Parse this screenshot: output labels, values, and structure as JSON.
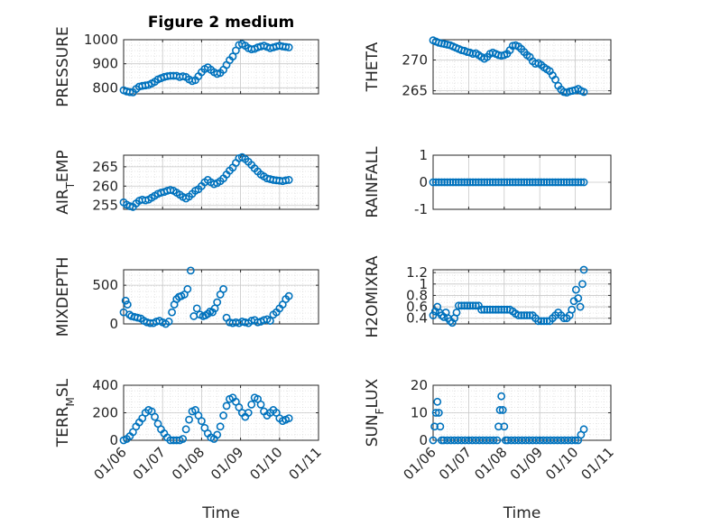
{
  "figure_title": "Figure 2 medium",
  "colors": {
    "marker": "#0072BD",
    "axes": "#262626",
    "grid": "#c8c8c8",
    "minor_grid": "#dcdcdc"
  },
  "chart_data": [
    {
      "type": "scatter",
      "ylabel": "PRESSURE",
      "title": "Figure 2 medium",
      "xlabel": "",
      "xticks": [],
      "xlim": [
        0,
        5
      ],
      "ylim": [
        775,
        1000
      ],
      "yticks": [
        800,
        900,
        1000
      ],
      "grid": true,
      "minor_grid": true,
      "x": [
        0.0,
        0.08,
        0.16,
        0.24,
        0.32,
        0.4,
        0.48,
        0.56,
        0.64,
        0.72,
        0.8,
        0.88,
        0.96,
        1.04,
        1.12,
        1.2,
        1.28,
        1.36,
        1.44,
        1.52,
        1.6,
        1.68,
        1.76,
        1.84,
        1.92,
        2.0,
        2.08,
        2.16,
        2.24,
        2.32,
        2.4,
        2.48,
        2.56,
        2.64,
        2.72,
        2.8,
        2.88,
        2.96,
        3.04,
        3.12,
        3.2,
        3.28,
        3.36,
        3.44,
        3.52,
        3.6,
        3.68,
        3.76,
        3.84,
        3.92,
        4.0,
        4.08,
        4.16,
        4.24
      ],
      "y": [
        790,
        785,
        782,
        781,
        795,
        805,
        808,
        810,
        812,
        818,
        825,
        835,
        840,
        845,
        848,
        850,
        850,
        850,
        845,
        848,
        845,
        835,
        828,
        832,
        848,
        865,
        878,
        885,
        875,
        865,
        858,
        862,
        875,
        895,
        915,
        930,
        955,
        978,
        982,
        975,
        965,
        960,
        962,
        968,
        972,
        975,
        970,
        965,
        968,
        972,
        975,
        972,
        970,
        968
      ]
    },
    {
      "type": "scatter",
      "ylabel": "THETA",
      "xlabel": "",
      "xticks": [],
      "xlim": [
        0,
        5
      ],
      "ylim": [
        264.5,
        273.3
      ],
      "yticks": [
        265,
        270
      ],
      "grid": true,
      "minor_grid": true,
      "x": [
        0.0,
        0.08,
        0.16,
        0.24,
        0.32,
        0.4,
        0.48,
        0.56,
        0.64,
        0.72,
        0.8,
        0.88,
        0.96,
        1.04,
        1.12,
        1.2,
        1.28,
        1.36,
        1.44,
        1.52,
        1.6,
        1.68,
        1.76,
        1.84,
        1.92,
        2.0,
        2.08,
        2.16,
        2.24,
        2.32,
        2.4,
        2.48,
        2.56,
        2.64,
        2.72,
        2.8,
        2.88,
        2.96,
        3.04,
        3.12,
        3.2,
        3.28,
        3.36,
        3.44,
        3.52,
        3.6,
        3.68,
        3.76,
        3.84,
        3.92,
        4.0,
        4.08,
        4.16,
        4.24
      ],
      "y": [
        273.2,
        273.0,
        272.8,
        272.7,
        272.6,
        272.5,
        272.4,
        272.2,
        272.0,
        271.8,
        271.6,
        271.5,
        271.3,
        271.2,
        271.0,
        271.1,
        270.8,
        270.5,
        270.2,
        270.5,
        271.0,
        271.2,
        271.0,
        270.8,
        270.7,
        270.8,
        271.0,
        271.6,
        272.3,
        272.4,
        272.2,
        271.8,
        271.3,
        270.8,
        270.5,
        269.8,
        269.4,
        269.5,
        269.2,
        268.8,
        268.5,
        268.2,
        267.5,
        266.8,
        265.8,
        265.2,
        264.8,
        264.7,
        264.9,
        265.0,
        265.1,
        265.3,
        265.0,
        264.8
      ]
    },
    {
      "type": "scatter",
      "ylabel": "AIR_TEMP",
      "xlabel": "",
      "xticks": [],
      "xlim": [
        0,
        5
      ],
      "ylim": [
        254,
        268
      ],
      "yticks": [
        255,
        260,
        265
      ],
      "grid": true,
      "minor_grid": true,
      "x": [
        0.0,
        0.08,
        0.16,
        0.24,
        0.32,
        0.4,
        0.48,
        0.56,
        0.64,
        0.72,
        0.8,
        0.88,
        0.96,
        1.04,
        1.12,
        1.2,
        1.28,
        1.36,
        1.44,
        1.52,
        1.6,
        1.68,
        1.76,
        1.84,
        1.92,
        2.0,
        2.08,
        2.16,
        2.24,
        2.32,
        2.4,
        2.48,
        2.56,
        2.64,
        2.72,
        2.8,
        2.88,
        2.96,
        3.04,
        3.12,
        3.2,
        3.28,
        3.36,
        3.44,
        3.52,
        3.6,
        3.68,
        3.76,
        3.84,
        3.92,
        4.0,
        4.08,
        4.16,
        4.24
      ],
      "y": [
        255.8,
        255.2,
        254.8,
        254.6,
        255.5,
        256.2,
        256.5,
        256.3,
        256.5,
        257.0,
        257.5,
        258.0,
        258.3,
        258.5,
        258.8,
        259.0,
        258.8,
        258.3,
        257.8,
        257.2,
        256.8,
        257.3,
        258.0,
        258.8,
        259.2,
        260.0,
        261.0,
        261.6,
        261.0,
        260.5,
        260.8,
        261.3,
        262.0,
        263.0,
        264.0,
        264.8,
        266.0,
        267.2,
        267.5,
        267.0,
        266.3,
        265.5,
        264.6,
        263.8,
        263.0,
        262.5,
        262.0,
        261.8,
        261.6,
        261.5,
        261.4,
        261.3,
        261.5,
        261.6
      ]
    },
    {
      "type": "scatter",
      "ylabel": "RAINFALL",
      "xlabel": "",
      "xticks": [],
      "xlim": [
        0,
        5
      ],
      "ylim": [
        -1,
        1
      ],
      "yticks": [
        -1,
        0,
        1
      ],
      "grid": true,
      "minor_grid": false,
      "x": [
        0.0,
        0.08,
        0.16,
        0.24,
        0.32,
        0.4,
        0.48,
        0.56,
        0.64,
        0.72,
        0.8,
        0.88,
        0.96,
        1.04,
        1.12,
        1.2,
        1.28,
        1.36,
        1.44,
        1.52,
        1.6,
        1.68,
        1.76,
        1.84,
        1.92,
        2.0,
        2.08,
        2.16,
        2.24,
        2.32,
        2.4,
        2.48,
        2.56,
        2.64,
        2.72,
        2.8,
        2.88,
        2.96,
        3.04,
        3.12,
        3.2,
        3.28,
        3.36,
        3.44,
        3.52,
        3.6,
        3.68,
        3.76,
        3.84,
        3.92,
        4.0,
        4.08,
        4.16,
        4.24
      ],
      "y": [
        0,
        0,
        0,
        0,
        0,
        0,
        0,
        0,
        0,
        0,
        0,
        0,
        0,
        0,
        0,
        0,
        0,
        0,
        0,
        0,
        0,
        0,
        0,
        0,
        0,
        0,
        0,
        0,
        0,
        0,
        0,
        0,
        0,
        0,
        0,
        0,
        0,
        0,
        0,
        0,
        0,
        0,
        0,
        0,
        0,
        0,
        0,
        0,
        0,
        0,
        0,
        0,
        0,
        0
      ]
    },
    {
      "type": "scatter",
      "ylabel": "MIXDEPTH",
      "xlabel": "",
      "xticks": [],
      "xlim": [
        0,
        5
      ],
      "ylim": [
        0,
        700
      ],
      "yticks": [
        0,
        500
      ],
      "grid": true,
      "minor_grid": true,
      "x": [
        0.0,
        0.05,
        0.1,
        0.15,
        0.2,
        0.28,
        0.36,
        0.44,
        0.52,
        0.6,
        0.68,
        0.76,
        0.84,
        0.92,
        1.0,
        1.08,
        1.16,
        1.24,
        1.3,
        1.36,
        1.42,
        1.48,
        1.56,
        1.64,
        1.72,
        1.8,
        1.88,
        1.96,
        2.04,
        2.1,
        2.16,
        2.22,
        2.28,
        2.34,
        2.4,
        2.48,
        2.56,
        2.64,
        2.72,
        2.8,
        2.88,
        2.96,
        3.04,
        3.12,
        3.2,
        3.28,
        3.36,
        3.44,
        3.52,
        3.6,
        3.68,
        3.76,
        3.84,
        3.92,
        4.0,
        4.08,
        4.16,
        4.24
      ],
      "y": [
        150,
        300,
        250,
        120,
        100,
        90,
        80,
        70,
        40,
        20,
        10,
        10,
        30,
        40,
        20,
        0,
        30,
        150,
        250,
        320,
        350,
        360,
        380,
        450,
        690,
        100,
        200,
        120,
        100,
        110,
        130,
        160,
        150,
        200,
        280,
        380,
        450,
        80,
        20,
        10,
        20,
        10,
        30,
        20,
        10,
        40,
        50,
        20,
        30,
        50,
        60,
        40,
        120,
        150,
        200,
        250,
        320,
        360
      ]
    },
    {
      "type": "scatter",
      "ylabel": "H2OMIXRA",
      "xlabel": "",
      "xticks": [],
      "xlim": [
        0,
        5
      ],
      "ylim": [
        0.3,
        1.25
      ],
      "yticks": [
        0.4,
        0.6,
        0.8,
        1,
        1.2
      ],
      "grid": true,
      "minor_grid": true,
      "x": [
        0.0,
        0.06,
        0.12,
        0.18,
        0.24,
        0.3,
        0.36,
        0.42,
        0.48,
        0.54,
        0.6,
        0.66,
        0.72,
        0.8,
        0.88,
        0.96,
        1.04,
        1.12,
        1.2,
        1.28,
        1.36,
        1.44,
        1.52,
        1.6,
        1.68,
        1.76,
        1.84,
        1.92,
        2.0,
        2.08,
        2.16,
        2.24,
        2.32,
        2.4,
        2.48,
        2.56,
        2.64,
        2.72,
        2.8,
        2.88,
        2.96,
        3.04,
        3.12,
        3.2,
        3.28,
        3.36,
        3.44,
        3.52,
        3.6,
        3.68,
        3.76,
        3.84,
        3.9,
        3.96,
        4.02,
        4.08,
        4.14,
        4.2,
        4.24
      ],
      "y": [
        0.45,
        0.52,
        0.6,
        0.5,
        0.45,
        0.42,
        0.5,
        0.4,
        0.35,
        0.32,
        0.4,
        0.5,
        0.62,
        0.62,
        0.62,
        0.62,
        0.62,
        0.62,
        0.62,
        0.62,
        0.55,
        0.55,
        0.55,
        0.55,
        0.55,
        0.55,
        0.55,
        0.55,
        0.55,
        0.55,
        0.55,
        0.52,
        0.48,
        0.45,
        0.45,
        0.45,
        0.45,
        0.45,
        0.45,
        0.4,
        0.35,
        0.35,
        0.35,
        0.35,
        0.35,
        0.4,
        0.45,
        0.5,
        0.45,
        0.4,
        0.4,
        0.45,
        0.55,
        0.7,
        0.9,
        0.75,
        0.6,
        1.0,
        1.25
      ]
    },
    {
      "type": "scatter",
      "ylabel": "TERR_MSL",
      "xlabel": "Time",
      "xticks": [
        "01/06",
        "01/07",
        "01/08",
        "01/09",
        "01/10",
        "01/11"
      ],
      "xlim": [
        0,
        5
      ],
      "ylim": [
        0,
        400
      ],
      "yticks": [
        0,
        200,
        400
      ],
      "grid": true,
      "minor_grid": true,
      "x": [
        0.0,
        0.08,
        0.16,
        0.24,
        0.32,
        0.4,
        0.48,
        0.56,
        0.64,
        0.72,
        0.8,
        0.88,
        0.96,
        1.04,
        1.12,
        1.2,
        1.28,
        1.36,
        1.44,
        1.52,
        1.6,
        1.68,
        1.76,
        1.84,
        1.92,
        2.0,
        2.08,
        2.16,
        2.24,
        2.32,
        2.4,
        2.48,
        2.56,
        2.64,
        2.72,
        2.8,
        2.88,
        2.96,
        3.04,
        3.12,
        3.2,
        3.28,
        3.36,
        3.44,
        3.52,
        3.6,
        3.68,
        3.76,
        3.84,
        3.92,
        4.0,
        4.08,
        4.16,
        4.24
      ],
      "y": [
        0,
        10,
        30,
        60,
        100,
        130,
        160,
        200,
        220,
        210,
        170,
        120,
        80,
        50,
        20,
        0,
        0,
        0,
        0,
        10,
        80,
        150,
        210,
        220,
        180,
        140,
        90,
        50,
        20,
        10,
        40,
        100,
        180,
        250,
        300,
        310,
        280,
        240,
        200,
        170,
        200,
        260,
        310,
        300,
        260,
        210,
        180,
        200,
        220,
        200,
        160,
        140,
        150,
        160
      ]
    },
    {
      "type": "scatter",
      "ylabel": "SUN_FLUX",
      "xlabel": "Time",
      "xticks": [
        "01/06",
        "01/07",
        "01/08",
        "01/09",
        "01/10",
        "01/11"
      ],
      "xlim": [
        0,
        5
      ],
      "ylim": [
        0,
        20
      ],
      "yticks": [
        0,
        10,
        20
      ],
      "grid": true,
      "minor_grid": true,
      "x": [
        0.0,
        0.04,
        0.08,
        0.12,
        0.16,
        0.2,
        0.24,
        0.3,
        0.4,
        0.5,
        0.6,
        0.7,
        0.8,
        0.9,
        1.0,
        1.1,
        1.2,
        1.3,
        1.4,
        1.5,
        1.6,
        1.7,
        1.8,
        1.84,
        1.88,
        1.92,
        1.96,
        2.0,
        2.04,
        2.1,
        2.2,
        2.3,
        2.4,
        2.5,
        2.6,
        2.7,
        2.8,
        2.9,
        3.0,
        3.1,
        3.2,
        3.3,
        3.4,
        3.5,
        3.6,
        3.7,
        3.8,
        3.9,
        4.0,
        4.08,
        4.16,
        4.24
      ],
      "y": [
        0,
        5,
        10,
        14,
        10,
        5,
        0,
        0,
        0,
        0,
        0,
        0,
        0,
        0,
        0,
        0,
        0,
        0,
        0,
        0,
        0,
        0,
        0,
        5,
        11,
        16,
        11,
        5,
        0,
        0,
        0,
        0,
        0,
        0,
        0,
        0,
        0,
        0,
        0,
        0,
        0,
        0,
        0,
        0,
        0,
        0,
        0,
        0,
        0,
        0,
        2,
        4
      ]
    }
  ]
}
